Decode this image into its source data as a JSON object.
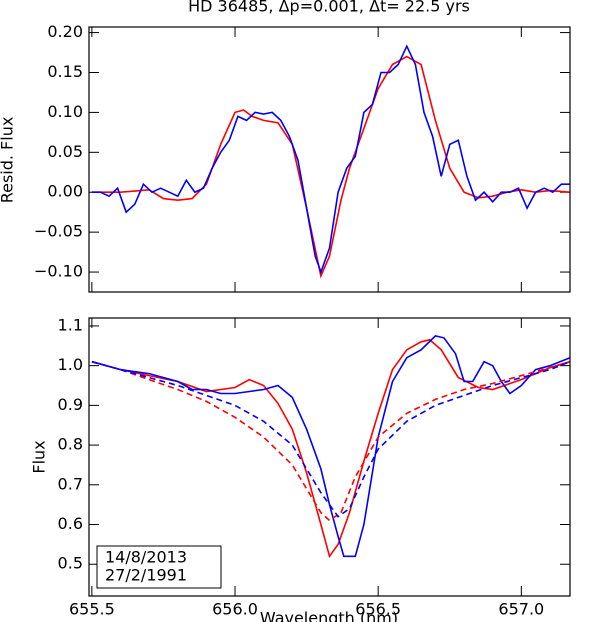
{
  "chart_data": [
    {
      "type": "line",
      "title": "HD 36485, Δp=0.001, Δt= 22.5 yrs",
      "ylabel": "Resid. Flux",
      "xlim": [
        655.49,
        657.17
      ],
      "ylim": [
        -0.125,
        0.207
      ],
      "yticks": [
        {
          "value": -0.1,
          "label": "−0.10"
        },
        {
          "value": -0.05,
          "label": "−0.05"
        },
        {
          "value": 0,
          "label": "0.00"
        },
        0.05,
        {
          "value": 0.1,
          "label": "0.10"
        },
        0.15,
        {
          "value": 0.2,
          "label": "0.20"
        }
      ],
      "series": [
        {
          "color": "#ff0000",
          "x": [
            655.5,
            655.6,
            655.7,
            655.75,
            655.8,
            655.85,
            655.9,
            655.95,
            656.0,
            656.03,
            656.06,
            656.1,
            656.15,
            656.2,
            656.25,
            656.3,
            656.33,
            656.37,
            656.4,
            656.45,
            656.5,
            656.55,
            656.6,
            656.65,
            656.7,
            656.75,
            656.8,
            656.85,
            656.9,
            656.95,
            657.0,
            657.05,
            657.1,
            657.17
          ],
          "values": [
            0,
            0,
            0.003,
            -0.008,
            -0.01,
            -0.008,
            0.01,
            0.06,
            0.1,
            0.103,
            0.095,
            0.09,
            0.087,
            0.06,
            -0.02,
            -0.105,
            -0.08,
            -0.01,
            0.03,
            0.08,
            0.13,
            0.16,
            0.17,
            0.16,
            0.09,
            0.03,
            0,
            -0.007,
            -0.005,
            0,
            0.003,
            0,
            0.002,
            0
          ]
        },
        {
          "color": "#0000ff",
          "x": [
            655.5,
            655.53,
            655.56,
            655.59,
            655.62,
            655.65,
            655.68,
            655.71,
            655.74,
            655.77,
            655.8,
            655.83,
            655.86,
            655.89,
            655.92,
            655.95,
            655.98,
            656.01,
            656.04,
            656.07,
            656.1,
            656.13,
            656.16,
            656.19,
            656.22,
            656.25,
            656.28,
            656.3,
            656.33,
            656.36,
            656.39,
            656.42,
            656.45,
            656.48,
            656.51,
            656.54,
            656.57,
            656.6,
            656.63,
            656.66,
            656.69,
            656.72,
            656.75,
            656.78,
            656.81,
            656.84,
            656.87,
            656.9,
            656.93,
            656.96,
            656.99,
            657.02,
            657.05,
            657.08,
            657.11,
            657.14,
            657.17
          ],
          "values": [
            0,
            0,
            -0.005,
            0.005,
            -0.025,
            -0.015,
            0.01,
            0,
            0.005,
            0,
            -0.005,
            0.015,
            0,
            0.005,
            0.03,
            0.05,
            0.065,
            0.095,
            0.09,
            0.1,
            0.098,
            0.1,
            0.09,
            0.07,
            0.04,
            -0.02,
            -0.08,
            -0.1,
            -0.07,
            0,
            0.03,
            0.045,
            0.1,
            0.11,
            0.15,
            0.15,
            0.16,
            0.183,
            0.16,
            0.1,
            0.07,
            0.02,
            0.06,
            0.065,
            0.02,
            -0.01,
            0,
            -0.012,
            0,
            0,
            0.005,
            -0.02,
            0,
            0.005,
            0,
            0.01,
            0.01
          ]
        }
      ]
    },
    {
      "type": "line",
      "xlabel": "Wavelength (nm)",
      "ylabel": "Flux",
      "xlim": [
        655.49,
        657.17
      ],
      "ylim": [
        0.42,
        1.12
      ],
      "xticks": [
        655.5,
        {
          "value": 656,
          "label": "656.0"
        },
        656.5,
        {
          "value": 657,
          "label": "657.0"
        }
      ],
      "yticks": [
        0.5,
        0.6,
        0.7,
        0.8,
        0.9,
        {
          "value": 1,
          "label": "1.0"
        },
        1.1
      ],
      "legend": "lower left",
      "series": [
        {
          "name": "14/8/2013",
          "color": "#ff0000",
          "dashed": false,
          "x": [
            655.5,
            655.6,
            655.7,
            655.8,
            655.9,
            656.0,
            656.05,
            656.1,
            656.15,
            656.2,
            656.25,
            656.3,
            656.33,
            656.36,
            656.4,
            656.45,
            656.5,
            656.55,
            656.6,
            656.65,
            656.68,
            656.72,
            656.78,
            656.85,
            656.9,
            657.0,
            657.1,
            657.17
          ],
          "values": [
            1.01,
            0.99,
            0.975,
            0.96,
            0.935,
            0.945,
            0.965,
            0.95,
            0.905,
            0.84,
            0.73,
            0.6,
            0.52,
            0.55,
            0.63,
            0.76,
            0.88,
            0.99,
            1.04,
            1.06,
            1.065,
            1.04,
            0.97,
            0.945,
            0.94,
            0.965,
            0.995,
            1.01
          ]
        },
        {
          "name": "27/2/1991",
          "color": "#0000ff",
          "dashed": false,
          "x": [
            655.5,
            655.55,
            655.6,
            655.7,
            655.8,
            655.85,
            655.9,
            655.95,
            656.0,
            656.05,
            656.1,
            656.15,
            656.2,
            656.25,
            656.3,
            656.33,
            656.36,
            656.38,
            656.42,
            656.45,
            656.5,
            656.55,
            656.6,
            656.65,
            656.7,
            656.73,
            656.77,
            656.8,
            656.83,
            656.87,
            656.9,
            656.93,
            656.96,
            657.0,
            657.05,
            657.1,
            657.17
          ],
          "values": [
            1.01,
            1.0,
            0.99,
            0.98,
            0.96,
            0.94,
            0.94,
            0.93,
            0.93,
            0.935,
            0.94,
            0.95,
            0.92,
            0.84,
            0.74,
            0.65,
            0.57,
            0.52,
            0.52,
            0.6,
            0.82,
            0.96,
            1.02,
            1.04,
            1.075,
            1.07,
            1.03,
            0.96,
            0.96,
            1.01,
            1.0,
            0.96,
            0.93,
            0.95,
            0.99,
            1.0,
            1.02
          ]
        },
        {
          "color": "#ff0000",
          "dashed": true,
          "x": [
            655.5,
            655.6,
            655.7,
            655.8,
            655.9,
            656.0,
            656.1,
            656.2,
            656.25,
            656.3,
            656.33,
            656.37,
            656.42,
            656.5,
            656.6,
            656.7,
            656.8,
            656.9,
            657.0,
            657.1,
            657.17
          ],
          "values": [
            1.01,
            0.99,
            0.965,
            0.94,
            0.91,
            0.87,
            0.82,
            0.75,
            0.69,
            0.63,
            0.61,
            0.63,
            0.72,
            0.82,
            0.88,
            0.915,
            0.94,
            0.955,
            0.975,
            0.995,
            1.01
          ]
        },
        {
          "color": "#0000ff",
          "dashed": true,
          "x": [
            655.5,
            655.6,
            655.7,
            655.8,
            655.9,
            656.0,
            656.1,
            656.2,
            656.3,
            656.36,
            656.4,
            656.45,
            656.5,
            656.6,
            656.7,
            656.8,
            656.9,
            657.0,
            657.1,
            657.17
          ],
          "values": [
            1.01,
            0.99,
            0.97,
            0.95,
            0.925,
            0.9,
            0.86,
            0.8,
            0.68,
            0.62,
            0.64,
            0.72,
            0.79,
            0.86,
            0.9,
            0.925,
            0.95,
            0.97,
            0.99,
            1.01
          ]
        }
      ]
    }
  ]
}
